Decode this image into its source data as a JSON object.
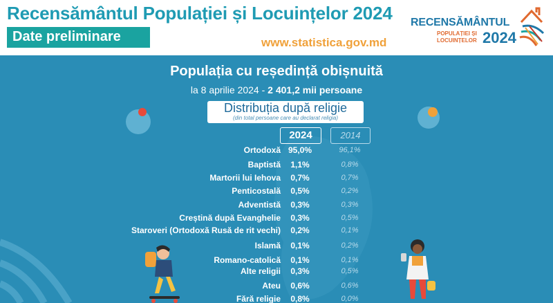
{
  "header": {
    "title": "Recensământul Populației și Locuințelor 2024",
    "subtitle": "Date preliminare",
    "website": "www.statistica.gov.md"
  },
  "logo": {
    "word": "RECENSĂMÂNTUL",
    "line1": "POPULAȚIEI ȘI",
    "line2": "LOCUINȚELOR",
    "year": "2024"
  },
  "panel": {
    "title": "Populația cu reședință obișnuită",
    "date_prefix": "la 8 aprilie 2024 - ",
    "date_value": "2 401,2 mii persoane",
    "section_title": "Distribuția după religie",
    "section_note": "(din total persoane care au declarat religia)",
    "year_current": "2024",
    "year_previous": "2014"
  },
  "rows": [
    {
      "label": "Ortodoxă",
      "v2024": "95,0%",
      "v2014": "96,1%"
    },
    {
      "label": "Baptistă",
      "v2024": "1,1%",
      "v2014": "0,8%"
    },
    {
      "label": "Martorii lui Iehova",
      "v2024": "0,7%",
      "v2014": "0,7%"
    },
    {
      "label": "Penticostală",
      "v2024": "0,5%",
      "v2014": "0,2%"
    },
    {
      "label": "Adventistă",
      "v2024": "0,3%",
      "v2014": "0,3%"
    },
    {
      "label": "Creștină după Evanghelie",
      "v2024": "0,3%",
      "v2014": "0,5%"
    },
    {
      "label": "Staroveri (Ortodoxă Rusă de rit vechi)",
      "v2024": "0,2%",
      "v2014": "0,1%"
    },
    {
      "label": "Islamă",
      "v2024": "0,1%",
      "v2014": "0,2%"
    },
    {
      "label": "Romano-catolică",
      "v2024": "0,1%",
      "v2014": "0,1%"
    },
    {
      "label": "Alte religii",
      "v2024": "0,3%",
      "v2014": "0,5%"
    },
    {
      "label": "Ateu",
      "v2024": "0,6%",
      "v2014": "0,6%"
    },
    {
      "label": "Fără religie",
      "v2024": "0,8%",
      "v2014": "0,0%"
    }
  ],
  "colors": {
    "panel": "#2a8db6",
    "title": "#1f9bb3",
    "subtitle_bg": "#1aa3a0",
    "website": "#f0a13a"
  }
}
